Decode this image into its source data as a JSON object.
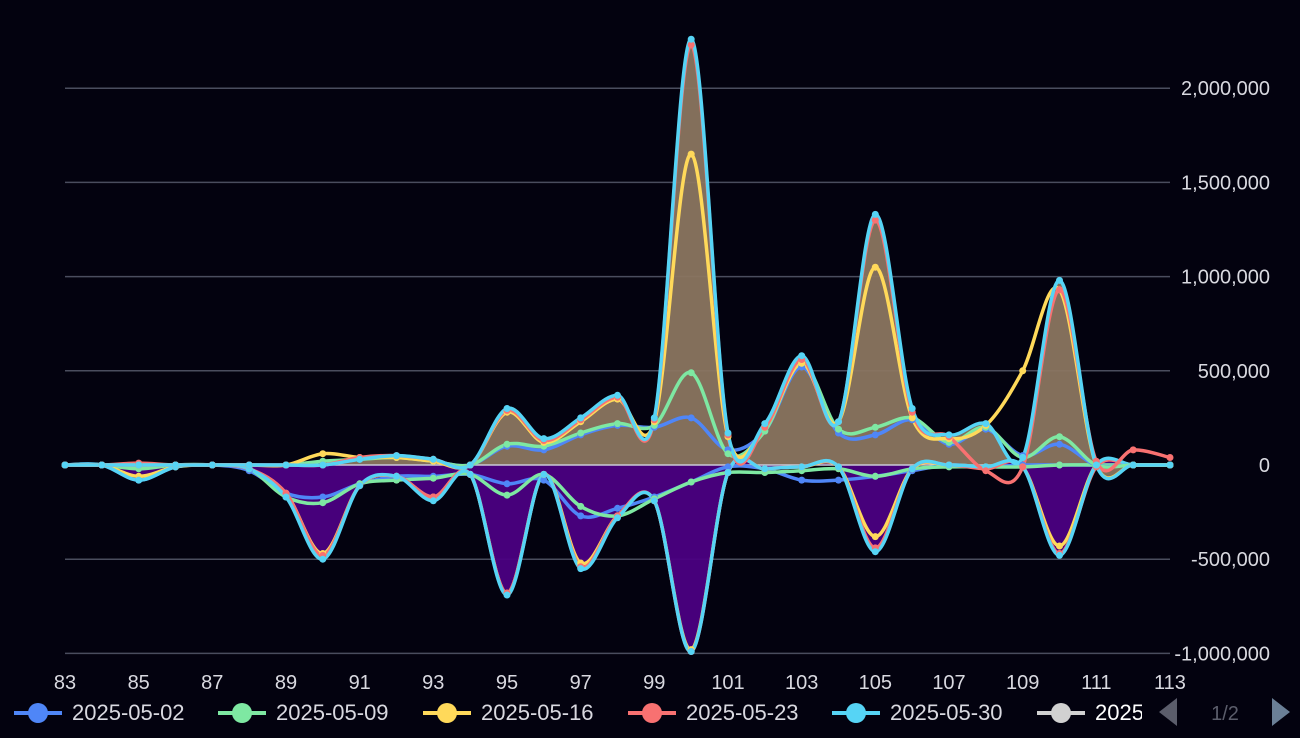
{
  "chart_data": {
    "type": "line",
    "x": [
      83,
      84,
      85,
      86,
      87,
      88,
      89,
      90,
      91,
      92,
      93,
      94,
      95,
      96,
      97,
      98,
      99,
      100,
      101,
      102,
      103,
      104,
      105,
      106,
      107,
      108,
      109,
      110,
      111,
      112,
      113
    ],
    "x_ticks": [
      "83",
      "85",
      "87",
      "89",
      "91",
      "93",
      "95",
      "97",
      "99",
      "101",
      "103",
      "105",
      "107",
      "109",
      "111",
      "113"
    ],
    "y_ticks": [
      "-1,000,000",
      "-500,000",
      "0",
      "500,000",
      "1,000,000",
      "1,500,000",
      "2,000,000"
    ],
    "ylim": [
      -1000000,
      2500000
    ],
    "xlim": [
      83,
      113
    ],
    "grid": true,
    "y_axis_position": "right",
    "legend_position": "bottom",
    "area_fill": {
      "positive": "#8a7560",
      "negative": "#4b0082"
    },
    "series": [
      {
        "name": "2025-05-02",
        "color": "#4f86f7",
        "values": [
          0,
          0,
          -80000,
          -10000,
          0,
          -30000,
          -150000,
          -170000,
          -100000,
          -60000,
          -60000,
          -50000,
          -100000,
          -80000,
          -270000,
          -230000,
          -170000,
          -90000,
          -10000,
          -20000,
          -80000,
          -80000,
          -60000,
          -30000,
          0,
          -10000,
          0,
          0,
          0,
          0,
          0
        ]
      },
      {
        "name": "2025-05-09",
        "color": "#7ee8a2",
        "values": [
          0,
          0,
          -20000,
          0,
          0,
          -20000,
          -170000,
          -200000,
          -100000,
          -80000,
          -70000,
          -50000,
          -160000,
          -50000,
          -220000,
          -270000,
          -180000,
          -90000,
          -40000,
          -40000,
          -30000,
          -20000,
          -60000,
          -20000,
          -10000,
          -10000,
          -10000,
          0,
          0,
          0,
          0
        ]
      },
      {
        "name": "2025-05-16",
        "color": "#ffd95a",
        "values": [
          0,
          0,
          -60000,
          -10000,
          0,
          -20000,
          -150000,
          -470000,
          -110000,
          -60000,
          -170000,
          -50000,
          -680000,
          -50000,
          -520000,
          -270000,
          -190000,
          -980000,
          -40000,
          -20000,
          -10000,
          -10000,
          -380000,
          -20000,
          0,
          -10000,
          -10000,
          -430000,
          0,
          0,
          0
        ]
      },
      {
        "name": "2025-05-23",
        "color": "#f87171",
        "values": [
          0,
          0,
          10000,
          0,
          0,
          -20000,
          -150000,
          -480000,
          -110000,
          -60000,
          -170000,
          -50000,
          -680000,
          -50000,
          -540000,
          -270000,
          -190000,
          -990000,
          -40000,
          -20000,
          -10000,
          -10000,
          -440000,
          -20000,
          0,
          -20000,
          -10000,
          -470000,
          -10000,
          0,
          0
        ]
      },
      {
        "name": "2025-05-30",
        "color": "#56d4f5",
        "values": [
          0,
          0,
          -80000,
          -10000,
          0,
          -20000,
          -170000,
          -500000,
          -110000,
          -60000,
          -190000,
          -50000,
          -690000,
          -50000,
          -550000,
          -280000,
          -190000,
          -990000,
          -40000,
          -20000,
          -10000,
          -10000,
          -460000,
          -20000,
          0,
          -10000,
          -10000,
          -480000,
          0,
          0,
          0
        ]
      }
    ],
    "series_upper": [
      {
        "name": "2025-05-02",
        "color": "#4f86f7",
        "values": [
          0,
          0,
          0,
          0,
          0,
          0,
          0,
          0,
          30000,
          40000,
          20000,
          0,
          100000,
          80000,
          160000,
          210000,
          200000,
          250000,
          80000,
          180000,
          520000,
          170000,
          160000,
          240000,
          110000,
          190000,
          50000,
          110000,
          0,
          0,
          0
        ]
      },
      {
        "name": "2025-05-09",
        "color": "#7ee8a2",
        "values": [
          0,
          0,
          0,
          0,
          0,
          0,
          0,
          20000,
          30000,
          40000,
          20000,
          0,
          110000,
          100000,
          170000,
          220000,
          210000,
          490000,
          60000,
          180000,
          540000,
          190000,
          200000,
          250000,
          120000,
          200000,
          40000,
          150000,
          0,
          0,
          0
        ]
      },
      {
        "name": "2025-05-16",
        "color": "#ffd95a",
        "values": [
          0,
          0,
          0,
          0,
          0,
          0,
          0,
          60000,
          40000,
          40000,
          20000,
          0,
          280000,
          120000,
          230000,
          350000,
          230000,
          1650000,
          150000,
          200000,
          540000,
          230000,
          1050000,
          250000,
          140000,
          210000,
          500000,
          930000,
          0,
          0,
          0
        ]
      },
      {
        "name": "2025-05-23",
        "color": "#f87171",
        "values": [
          0,
          0,
          0,
          0,
          0,
          0,
          0,
          0,
          40000,
          50000,
          30000,
          0,
          290000,
          130000,
          240000,
          360000,
          240000,
          2230000,
          160000,
          200000,
          560000,
          230000,
          1300000,
          280000,
          150000,
          -30000,
          -10000,
          930000,
          20000,
          80000,
          40000
        ]
      },
      {
        "name": "2025-05-30",
        "color": "#56d4f5",
        "values": [
          0,
          0,
          0,
          0,
          0,
          0,
          0,
          0,
          30000,
          50000,
          30000,
          0,
          300000,
          140000,
          250000,
          370000,
          250000,
          2260000,
          170000,
          220000,
          580000,
          230000,
          1330000,
          300000,
          160000,
          220000,
          40000,
          980000,
          0,
          0,
          0
        ]
      }
    ],
    "legend_entries": [
      "2025-05-02",
      "2025-05-09",
      "2025-05-16",
      "2025-05-23",
      "2025-05-30",
      "2025"
    ],
    "legend_extra_color": "#d1d1d1"
  },
  "legend_page": "1/2",
  "pager_prev_icon": "triangle-left-icon",
  "pager_next_icon": "triangle-right-icon",
  "colors": {
    "background": "#03020f",
    "grid": "#4a4d5e",
    "axis_text": "#d9d9e0",
    "legend_text": "#d9d9e0",
    "pager_disabled": "#5b5d6b",
    "pager_active": "#6a7f96"
  }
}
